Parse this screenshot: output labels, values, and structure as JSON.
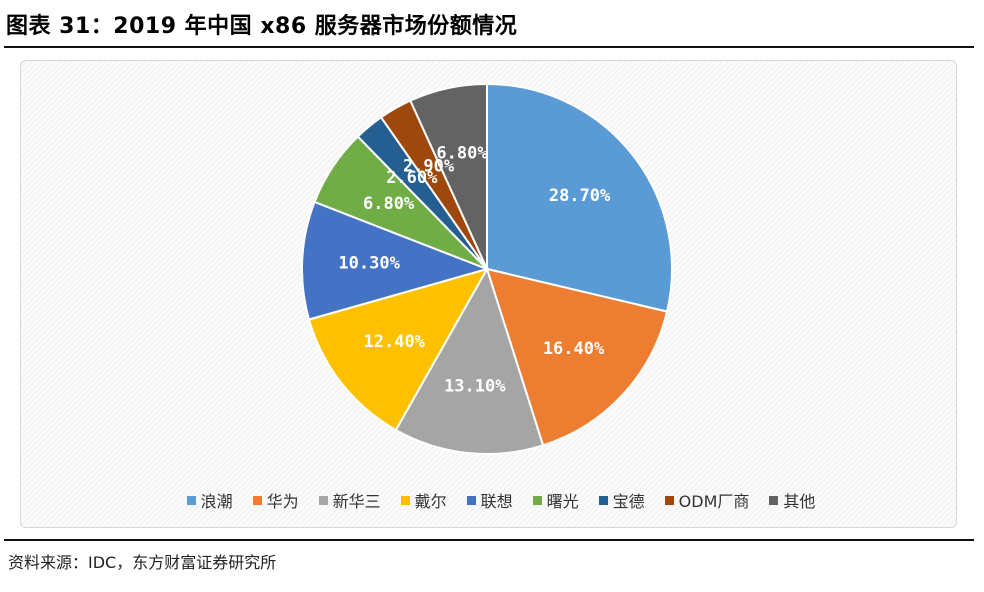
{
  "figure_title": "图表 31：2019 年中国 x86 服务器市场份额情况",
  "source": "资料来源：IDC，东方财富证券研究所",
  "chart_data": {
    "type": "pie",
    "title": "",
    "categories": [
      "浪潮",
      "华为",
      "新华三",
      "戴尔",
      "联想",
      "曙光",
      "宝德",
      "ODM厂商",
      "其他"
    ],
    "values": [
      28.7,
      16.4,
      13.1,
      12.4,
      10.3,
      6.8,
      2.6,
      2.9,
      6.8
    ],
    "labels": [
      "28.70%",
      "16.40%",
      "13.10%",
      "12.40%",
      "10.30%",
      "6.80%",
      "2.60%",
      "2.90%",
      "6.80%"
    ],
    "colors": [
      "#5b9bd5",
      "#ed7d31",
      "#a5a5a5",
      "#ffc000",
      "#4472c4",
      "#70ad47",
      "#255e91",
      "#9e480e",
      "#636363"
    ],
    "start_angle": "12 o'clock",
    "direction": "clockwise",
    "legend_position": "bottom"
  }
}
